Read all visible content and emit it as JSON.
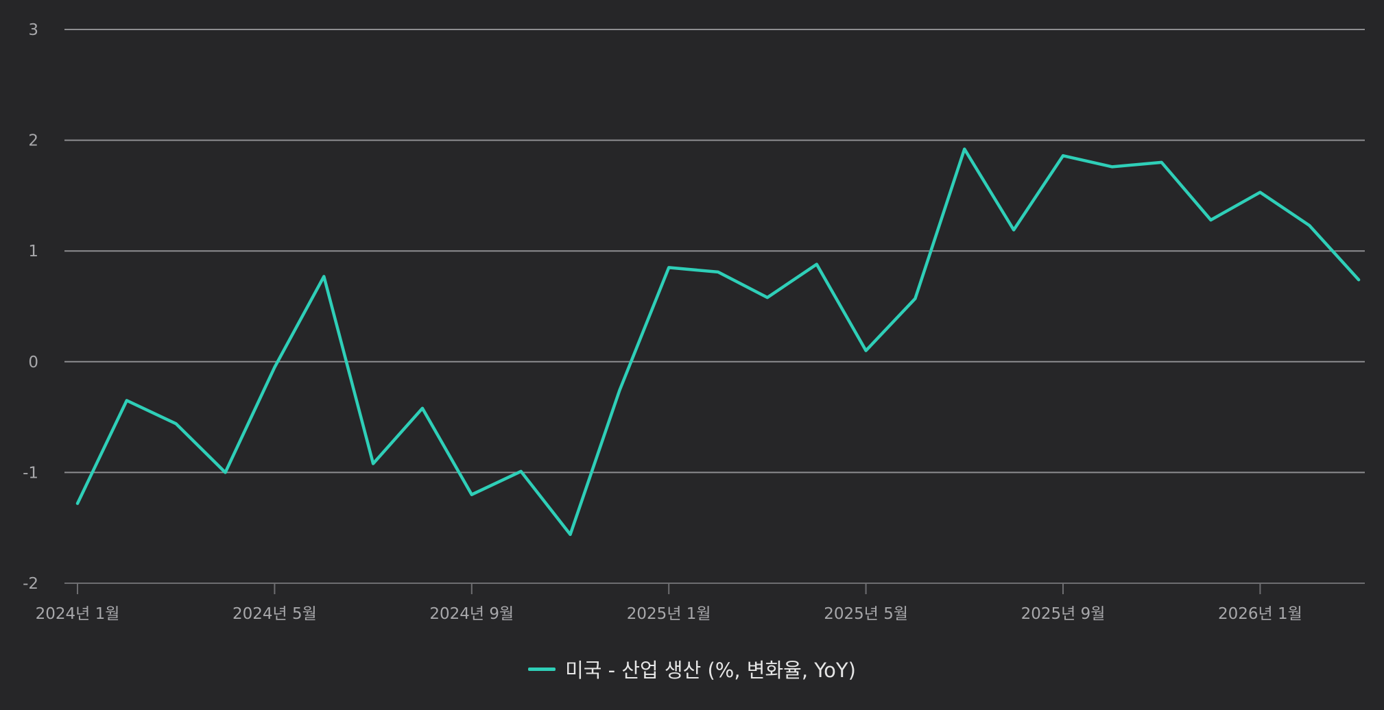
{
  "chart_data": {
    "type": "line",
    "title": "",
    "xlabel": "",
    "ylabel": "",
    "ylim": [
      -2,
      3
    ],
    "y_ticks": [
      "3",
      "2",
      "1",
      "0",
      "-1",
      "-2"
    ],
    "x": [
      "2024-01",
      "2024-02",
      "2024-03",
      "2024-04",
      "2024-05",
      "2024-06",
      "2024-07",
      "2024-08",
      "2024-09",
      "2024-10",
      "2024-11",
      "2024-12",
      "2025-01",
      "2025-02",
      "2025-03",
      "2025-04",
      "2025-05",
      "2025-06",
      "2025-07",
      "2025-08",
      "2025-09",
      "2025-10",
      "2025-11",
      "2025-12",
      "2026-01",
      "2026-02",
      "2026-03"
    ],
    "x_tick_labels": [
      "2024년 1월",
      "2024년 5월",
      "2024년 9월",
      "2025년 1월",
      "2025년 5월",
      "2025년 9월",
      "2026년 1월"
    ],
    "grid": true,
    "legend_position": "bottom-center",
    "series": [
      {
        "name": "미국 - 산업 생산 (%, 변화율, YoY)",
        "color": "#2fcfb8",
        "values": [
          -1.28,
          -0.35,
          -0.56,
          -1.0,
          -0.05,
          0.77,
          -0.92,
          -0.42,
          -1.2,
          -0.99,
          -1.56,
          -0.26,
          0.85,
          0.81,
          0.58,
          0.88,
          0.1,
          0.57,
          1.92,
          1.19,
          1.86,
          1.76,
          1.8,
          1.28,
          1.53,
          1.23,
          0.74
        ]
      }
    ]
  },
  "colors": {
    "background": "#262628",
    "grid": "#8e8e91",
    "axis": "#6e6e71",
    "tick_text": "#a8a8ab",
    "legend_text": "#e6e6e6"
  }
}
